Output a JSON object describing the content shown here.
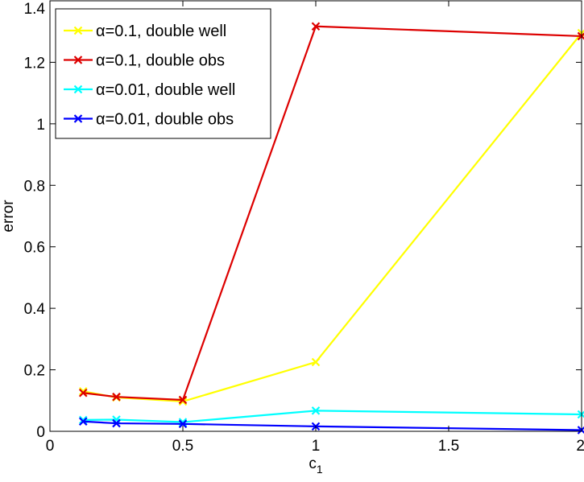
{
  "chart_data": {
    "type": "line",
    "xlabel": "c",
    "xlabel_subscript": "1",
    "ylabel": "error",
    "xlim": [
      0,
      2
    ],
    "ylim": [
      0,
      1.4
    ],
    "xticks": [
      0,
      0.5,
      1,
      1.5,
      2
    ],
    "xtick_labels": [
      "0",
      "0.5",
      "1",
      "1.5",
      "2"
    ],
    "yticks": [
      0,
      0.2,
      0.4,
      0.6,
      0.8,
      1,
      1.2,
      1.4
    ],
    "ytick_labels": [
      "0",
      "0.2",
      "0.4",
      "0.6",
      "0.8",
      "1",
      "1.2",
      "1.4"
    ],
    "grid": false,
    "legend_position": "top-left",
    "series": [
      {
        "name": "α=0.1, double well",
        "color": "#ffff00",
        "marker": "x",
        "x": [
          0.125,
          0.25,
          0.5,
          1,
          2
        ],
        "y": [
          0.13,
          0.11,
          0.097,
          0.225,
          1.295
        ]
      },
      {
        "name": "α=0.1, double obs",
        "color": "#dd0000",
        "marker": "x",
        "x": [
          0.125,
          0.25,
          0.5,
          1,
          2
        ],
        "y": [
          0.125,
          0.112,
          0.102,
          1.317,
          1.285
        ]
      },
      {
        "name": "α=0.01, double well",
        "color": "#00ffff",
        "marker": "x",
        "x": [
          0.125,
          0.25,
          0.5,
          1,
          2
        ],
        "y": [
          0.037,
          0.038,
          0.03,
          0.067,
          0.055
        ]
      },
      {
        "name": "α=0.01, double obs",
        "color": "#0000ff",
        "marker": "x",
        "x": [
          0.125,
          0.25,
          0.5,
          1,
          2
        ],
        "y": [
          0.032,
          0.026,
          0.024,
          0.016,
          0.004
        ]
      }
    ]
  }
}
